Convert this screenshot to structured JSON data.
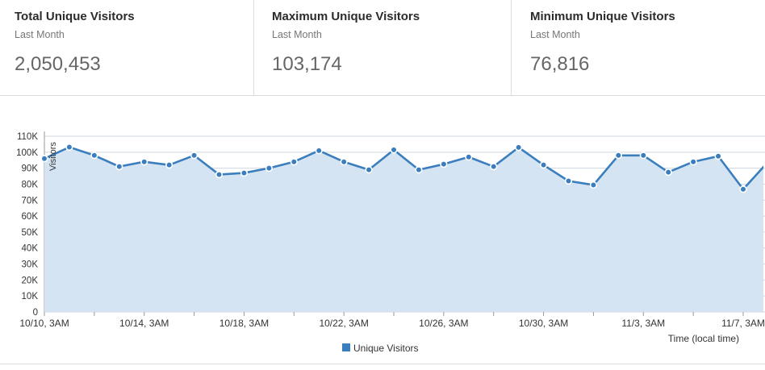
{
  "stats": [
    {
      "title": "Total Unique Visitors",
      "subtitle": "Last Month",
      "value": "2,050,453"
    },
    {
      "title": "Maximum Unique Visitors",
      "subtitle": "Last Month",
      "value": "103,174"
    },
    {
      "title": "Minimum Unique Visitors",
      "subtitle": "Last Month",
      "value": "76,816"
    }
  ],
  "colors": {
    "line": "#3a7ebd",
    "area": "#d3e3f2",
    "legend_swatch": "#3a7ebd"
  },
  "chart_data": {
    "type": "area",
    "title": "",
    "ylabel": "Visitors",
    "xlabel": "Time (local time)",
    "ylim": [
      0,
      110000
    ],
    "y_ticks": [
      "0",
      "10K",
      "20K",
      "30K",
      "40K",
      "50K",
      "60K",
      "70K",
      "80K",
      "90K",
      "100K",
      "110K"
    ],
    "x_tick_labels": [
      "10/10, 3AM",
      "10/14, 3AM",
      "10/18, 3AM",
      "10/22, 3AM",
      "10/26, 3AM",
      "10/30, 3AM",
      "11/3, 3AM",
      "11/7, 3AM"
    ],
    "x_tick_day_index": [
      0,
      4,
      8,
      12,
      16,
      20,
      24,
      28
    ],
    "x": [
      "10/10",
      "10/11",
      "10/12",
      "10/13",
      "10/14",
      "10/15",
      "10/16",
      "10/17",
      "10/18",
      "10/19",
      "10/20",
      "10/21",
      "10/22",
      "10/23",
      "10/24",
      "10/25",
      "10/26",
      "10/27",
      "10/28",
      "10/29",
      "10/30",
      "10/31",
      "11/1",
      "11/2",
      "11/3",
      "11/4",
      "11/5",
      "11/6",
      "11/7",
      "11/8"
    ],
    "series": [
      {
        "name": "Unique Visitors",
        "values": [
          96000,
          103174,
          98000,
          91000,
          94000,
          92000,
          98000,
          86000,
          87000,
          90000,
          94000,
          101000,
          94000,
          89000,
          101500,
          89000,
          92500,
          97000,
          91000,
          103000,
          92000,
          82000,
          79500,
          98000,
          98000,
          87500,
          94000,
          97500,
          76816,
          94000
        ]
      }
    ],
    "grid": true,
    "legend_position": "bottom-center"
  }
}
